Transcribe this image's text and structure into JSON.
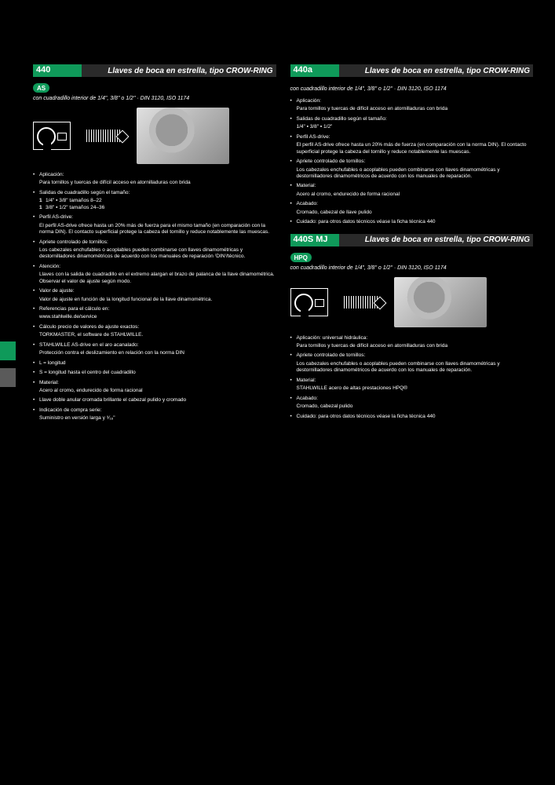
{
  "sections": {
    "s440": {
      "code": "440",
      "title": "Llaves de boca en estrella, tipo CROW-RING",
      "badge": "AS",
      "subtitle": "con cuadradillo interior de 1/4\", 3/8\" o 1/2\" · DIN 3120, ISO 1174",
      "bullets": [
        {
          "t": "b",
          "text": "Aplicación:"
        },
        {
          "t": "p",
          "text": "Para tornillos y tuercas de difícil acceso en atornilladuras con brida"
        },
        {
          "t": "b",
          "text": "Salidas de cuadradillo según el tamaño:"
        },
        {
          "t": "sub",
          "text": "1/4\" ▪ 3/8\" tamaños 8–22"
        },
        {
          "t": "sub",
          "text": "3/8\" ▪ 1/2\" tamaños 24–36"
        },
        {
          "t": "b",
          "text": "Perfil AS-drive:"
        },
        {
          "t": "p",
          "text": "El perfil AS-drive ofrece hasta un 20% más de fuerza para el mismo tamaño (en comparación con la norma DIN). El contacto superficial protege la cabeza del tornillo y reduce notablemente las muescas."
        },
        {
          "t": "b",
          "text": "Apriete controlado de tornillos:"
        },
        {
          "t": "p",
          "text": "Los cabezales enchufables o acoplables pueden combinarse con llaves dinamométricas y destornilladores dinamométricos de acuerdo con los manuales de reparación ⁽DIN⁾/técnico."
        },
        {
          "t": "b",
          "text": "Atención:"
        },
        {
          "t": "p",
          "text": "Llaves con la salida de cuadradillo en el extremo alargan el brazo de palanca de la llave dinamométrica. Observar el valor de ajuste según modo."
        },
        {
          "t": "b",
          "text": "Valor de ajuste:"
        },
        {
          "t": "p",
          "text": "Valor de ajuste en función de la longitud funcional de la llave dinamométrica."
        },
        {
          "t": "b",
          "text": "Referencias para el cálculo en:"
        },
        {
          "t": "p",
          "text": "www.stahlwille.de/service"
        },
        {
          "t": "b",
          "text": "Cálculo precio de valores de ajuste exactos:"
        },
        {
          "t": "p",
          "text": "TORKMASTER, el software de STAHLWILLE."
        },
        {
          "t": "b",
          "text": "STAHLWILLE AS-drive en el aro acanalado:"
        },
        {
          "t": "p",
          "text": "Protección contra el deslizamiento en relación con la norma DIN"
        },
        {
          "t": "b",
          "text": "L = longitud"
        },
        {
          "t": "b",
          "text": "S = longitud hasta el centro del cuadradillo"
        },
        {
          "t": "b",
          "text": "Material:"
        },
        {
          "t": "p",
          "text": "Acero al cromo, endurecido de forma racional"
        },
        {
          "t": "b",
          "text": "Llave doble anular cromada brillante el cabezal pulido y cromado"
        },
        {
          "t": "b",
          "text": "Indicación de compra serie:"
        },
        {
          "t": "p",
          "text": "Suministro en versión larga y ⁹⁄₁₆\""
        }
      ]
    },
    "s440a": {
      "code": "440a",
      "title": "Llaves de boca en estrella, tipo CROW-RING",
      "subtitle": "con cuadradillo interior de 1/4\", 3/8\" o 1/2\" · DIN 3120, ISO 1174",
      "bullets": [
        {
          "t": "b",
          "text": "Aplicación:"
        },
        {
          "t": "p",
          "text": "Para tornillos y tuercas de difícil acceso en atornilladuras con brida"
        },
        {
          "t": "b",
          "text": "Salidas de cuadradillo según el tamaño:"
        },
        {
          "t": "p",
          "text": "1/4\" ▪ 3/8\" ▪ 1/2\""
        },
        {
          "t": "b",
          "text": "Perfil AS-drive:"
        },
        {
          "t": "p",
          "text": "El perfil AS-drive ofrece hasta un 20% más de fuerza (en comparación con la norma DIN). El contacto superficial protege la cabeza del tornillo y reduce notablemente las muescas."
        },
        {
          "t": "b",
          "text": "Apriete controlado de tornillos:"
        },
        {
          "t": "p",
          "text": "Los cabezales enchufables o acoplables pueden combinarse con llaves dinamométricas y destornilladores dinamométricos de acuerdo con los manuales de reparación."
        },
        {
          "t": "b",
          "text": "Material:"
        },
        {
          "t": "p",
          "text": "Acero al cromo, endurecido de forma racional"
        },
        {
          "t": "b",
          "text": "Acabado:"
        },
        {
          "t": "p",
          "text": "Cromado, cabezal de llave pulido"
        },
        {
          "t": "b",
          "text": "Cuidado: para otros datos técnicos véase la ficha técnica 440"
        }
      ]
    },
    "s440smj": {
      "code": "440S MJ",
      "title": "Llaves de boca en estrella, tipo CROW-RING",
      "badge": "HPQ",
      "subtitle": "con cuadradillo interior de 1/4\", 3/8\" o 1/2\" · DIN 3120, ISO 1174",
      "bullets": [
        {
          "t": "b",
          "text": "Aplicación: universal hidráulica:"
        },
        {
          "t": "p",
          "text": "Para tornillos y tuercas de difícil acceso en atornilladuras con brida"
        },
        {
          "t": "b",
          "text": "Apriete controlado de tornillos:"
        },
        {
          "t": "p",
          "text": "Los cabezales enchufables o acoplables pueden combinarse con llaves dinamométricas y destornilladores dinamométricos de acuerdo con los manuales de reparación."
        },
        {
          "t": "b",
          "text": "Material:"
        },
        {
          "t": "p",
          "text": "STAHLWILLE acero de altas prestaciones HPQ®"
        },
        {
          "t": "b",
          "text": "Acabado:"
        },
        {
          "t": "p",
          "text": "Cromado, cabezal pulido"
        },
        {
          "t": "b",
          "text": "Cuidado: para otros datos técnicos véase la ficha técnica 440"
        }
      ]
    }
  }
}
